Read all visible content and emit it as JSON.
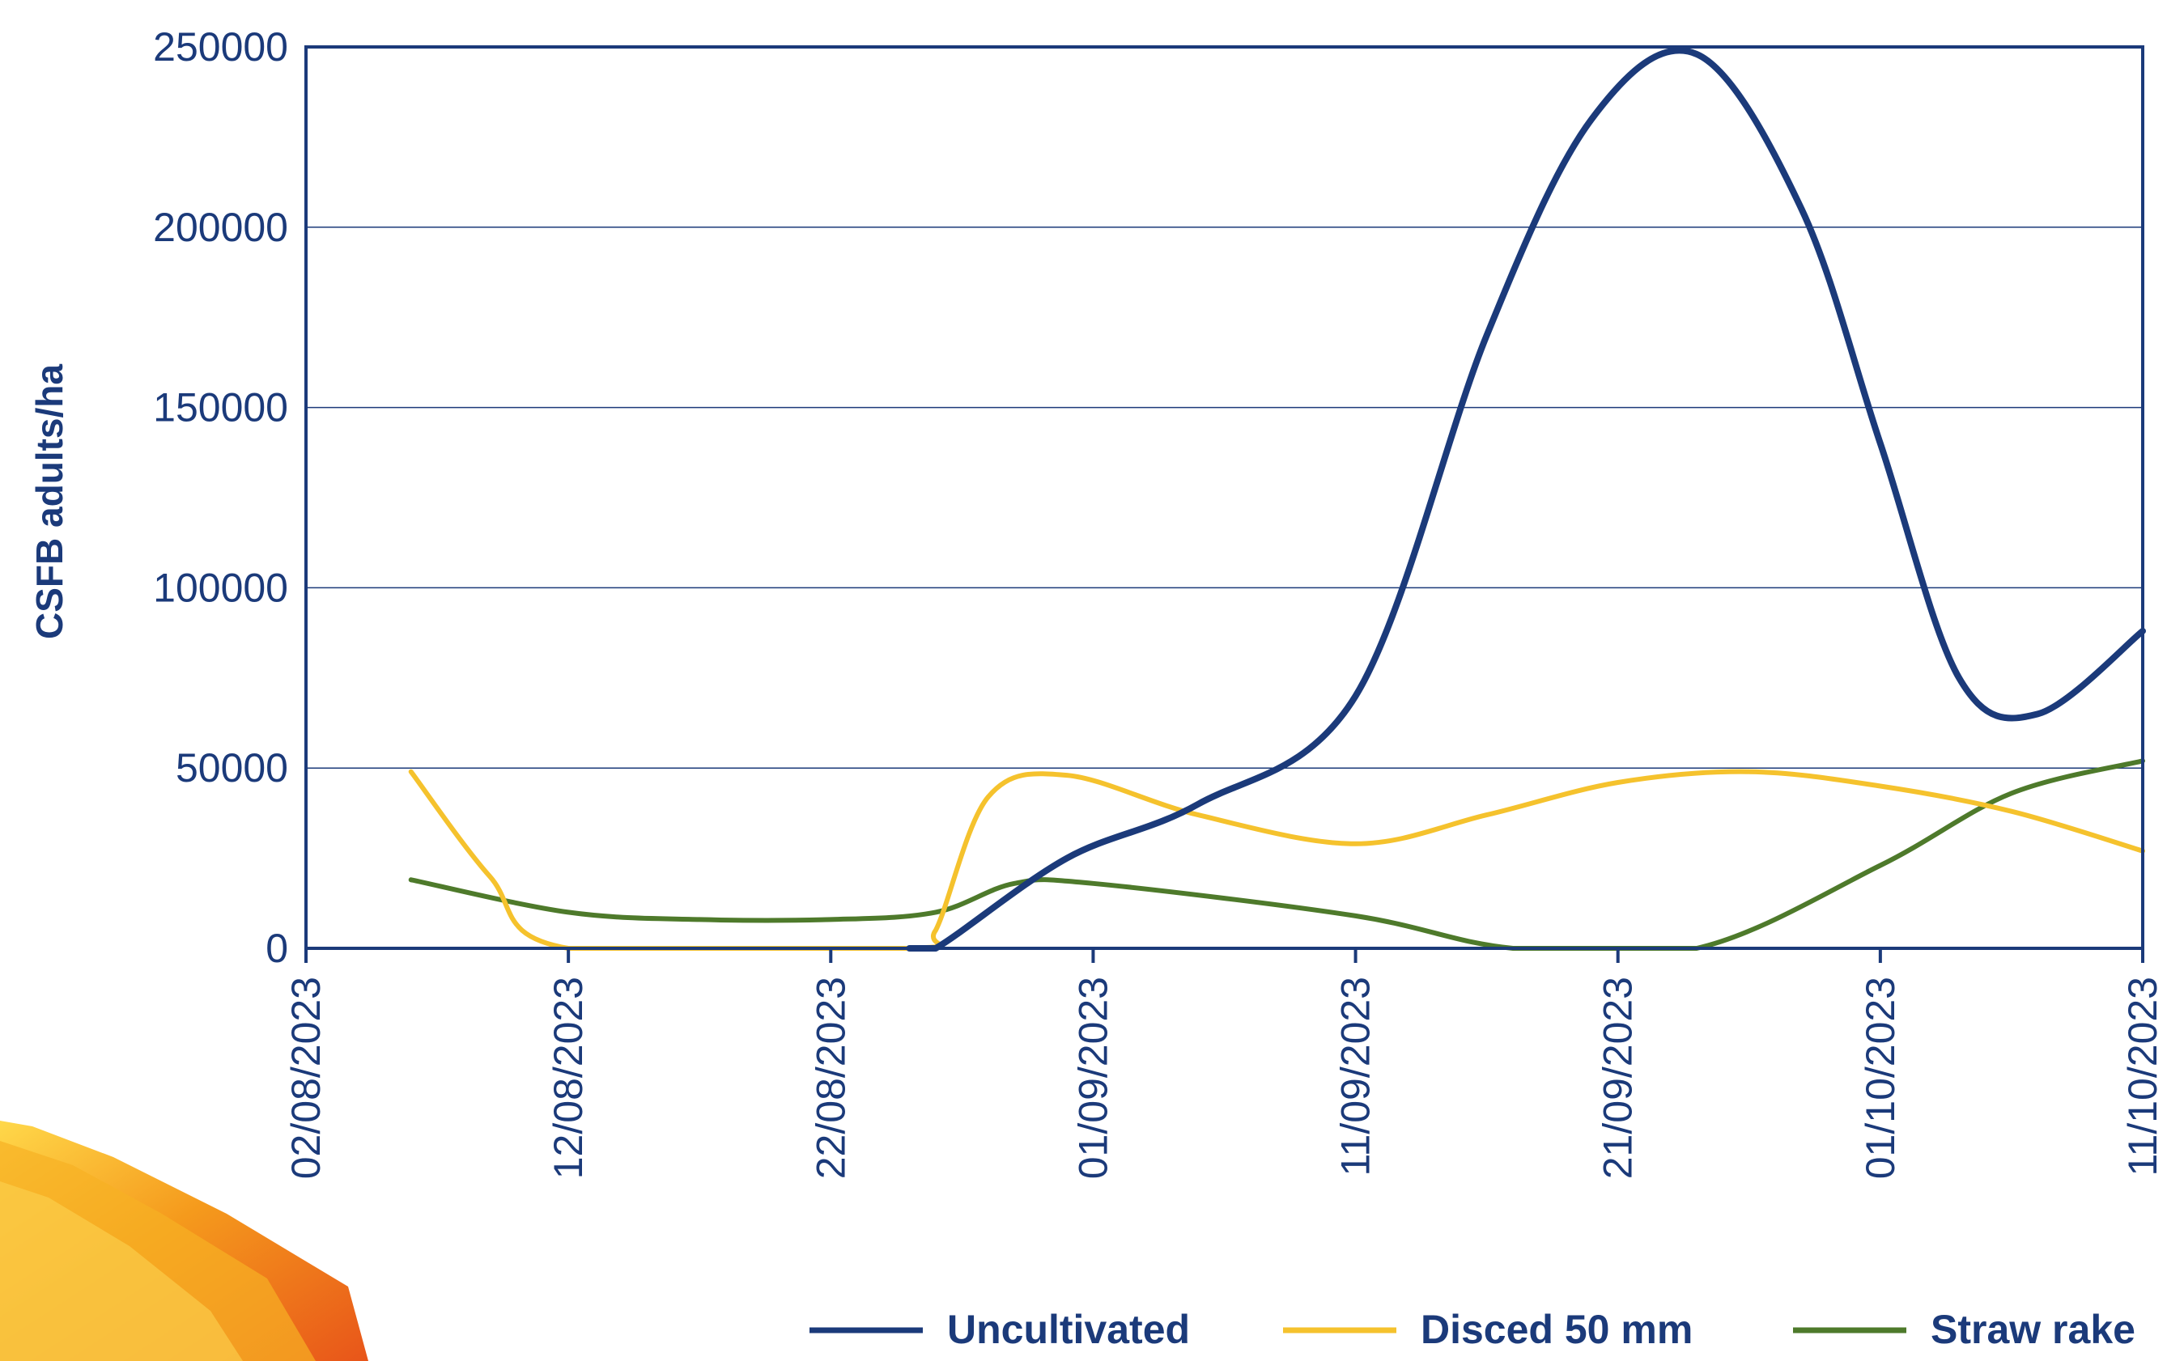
{
  "chart_data": {
    "type": "line",
    "ylabel": "CSFB adults/ha",
    "xlabel": "",
    "title": "",
    "ylim": [
      0,
      250000
    ],
    "y_ticks": [
      "0",
      "50000",
      "100000",
      "150000",
      "200000",
      "250000"
    ],
    "x_ticks": [
      "02/08/2023",
      "12/08/2023",
      "22/08/2023",
      "01/09/2023",
      "11/09/2023",
      "21/09/2023",
      "01/10/2023",
      "11/10/2023"
    ],
    "xlim": [
      "02/08/2023",
      "11/10/2023"
    ],
    "grid": "horizontal",
    "legend_position": "bottom-right",
    "series": [
      {
        "name": "Uncultivated",
        "color": "#1b3a7a",
        "points": [
          [
            "25/08/2023",
            0
          ],
          [
            "26/08/2023",
            0
          ],
          [
            "31/08/2023",
            25000
          ],
          [
            "05/09/2023",
            40000
          ],
          [
            "11/09/2023",
            70000
          ],
          [
            "16/09/2023",
            170000
          ],
          [
            "20/09/2023",
            230000
          ],
          [
            "24/09/2023",
            248000
          ],
          [
            "28/09/2023",
            205000
          ],
          [
            "01/10/2023",
            140000
          ],
          [
            "04/10/2023",
            75000
          ],
          [
            "07/10/2023",
            65000
          ],
          [
            "11/10/2023",
            88000
          ]
        ]
      },
      {
        "name": "Disced 50 mm",
        "color": "#f5c22d",
        "points": [
          [
            "06/08/2023",
            49000
          ],
          [
            "09/08/2023",
            20000
          ],
          [
            "12/08/2023",
            0
          ],
          [
            "25/08/2023",
            0
          ],
          [
            "26/08/2023",
            5000
          ],
          [
            "28/08/2023",
            42000
          ],
          [
            "31/08/2023",
            48000
          ],
          [
            "05/09/2023",
            37000
          ],
          [
            "11/09/2023",
            29000
          ],
          [
            "16/09/2023",
            37000
          ],
          [
            "21/09/2023",
            46000
          ],
          [
            "26/09/2023",
            49000
          ],
          [
            "01/10/2023",
            45000
          ],
          [
            "06/10/2023",
            38000
          ],
          [
            "11/10/2023",
            27000
          ]
        ]
      },
      {
        "name": "Straw rake",
        "color": "#4e7a2b",
        "points": [
          [
            "06/08/2023",
            19000
          ],
          [
            "12/08/2023",
            10000
          ],
          [
            "17/08/2023",
            8000
          ],
          [
            "22/08/2023",
            8000
          ],
          [
            "26/08/2023",
            10000
          ],
          [
            "29/08/2023",
            18000
          ],
          [
            "01/09/2023",
            18000
          ],
          [
            "11/09/2023",
            9000
          ],
          [
            "17/09/2023",
            0
          ],
          [
            "24/09/2023",
            0
          ],
          [
            "01/10/2023",
            23000
          ],
          [
            "06/10/2023",
            43000
          ],
          [
            "11/10/2023",
            52000
          ]
        ]
      }
    ]
  }
}
